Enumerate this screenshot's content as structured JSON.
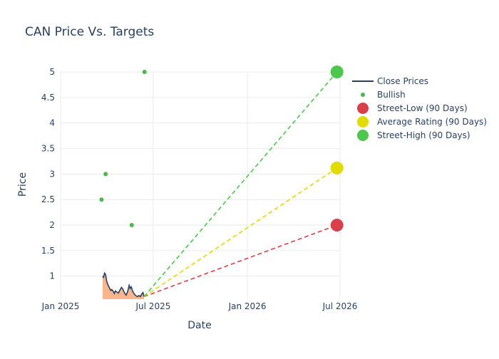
{
  "chart_data": {
    "type": "line",
    "title": "CAN Price Vs. Targets",
    "xlabel": "Date",
    "ylabel": "Price",
    "xlim": [
      "2025-01-01",
      "2026-07-01"
    ],
    "ylim": [
      0.55,
      5.0
    ],
    "x_ticks": [
      {
        "date": "2025-01-01",
        "label": "Jan 2025"
      },
      {
        "date": "2025-07-01",
        "label": "Jul 2025"
      },
      {
        "date": "2026-01-01",
        "label": "Jan 2026"
      },
      {
        "date": "2026-07-01",
        "label": "Jul 2026"
      }
    ],
    "y_ticks": [
      {
        "value": 1,
        "label": "1"
      },
      {
        "value": 1.5,
        "label": "1.5"
      },
      {
        "value": 2,
        "label": "2"
      },
      {
        "value": 2.5,
        "label": "2.5"
      },
      {
        "value": 3,
        "label": "3"
      },
      {
        "value": 3.5,
        "label": "3.5"
      },
      {
        "value": 4,
        "label": "4"
      },
      {
        "value": 4.5,
        "label": "4.5"
      },
      {
        "value": 5,
        "label": "5"
      }
    ],
    "grid": true,
    "legend_position": "top-right",
    "colors": {
      "close": "#2a3f5f",
      "close_fill": "#f8a978",
      "bullish": "#4bb84b",
      "street_low": "#d9414a",
      "average": "#e0dc00",
      "street_high": "#4cc64c"
    },
    "series": [
      {
        "name": "Close Prices",
        "kind": "line",
        "points": [
          {
            "x": "2025-03-24",
            "y": 1.0
          },
          {
            "x": "2025-03-26",
            "y": 0.98
          },
          {
            "x": "2025-03-28",
            "y": 1.06
          },
          {
            "x": "2025-03-30",
            "y": 1.03
          },
          {
            "x": "2025-04-01",
            "y": 0.9
          },
          {
            "x": "2025-04-04",
            "y": 0.82
          },
          {
            "x": "2025-04-07",
            "y": 0.76
          },
          {
            "x": "2025-04-09",
            "y": 0.72
          },
          {
            "x": "2025-04-11",
            "y": 0.74
          },
          {
            "x": "2025-04-14",
            "y": 0.7
          },
          {
            "x": "2025-04-16",
            "y": 0.66
          },
          {
            "x": "2025-04-18",
            "y": 0.71
          },
          {
            "x": "2025-04-21",
            "y": 0.69
          },
          {
            "x": "2025-04-24",
            "y": 0.67
          },
          {
            "x": "2025-04-27",
            "y": 0.73
          },
          {
            "x": "2025-04-30",
            "y": 0.78
          },
          {
            "x": "2025-05-03",
            "y": 0.74
          },
          {
            "x": "2025-05-06",
            "y": 0.67
          },
          {
            "x": "2025-05-09",
            "y": 0.63
          },
          {
            "x": "2025-05-12",
            "y": 0.7
          },
          {
            "x": "2025-05-15",
            "y": 0.82
          },
          {
            "x": "2025-05-17",
            "y": 0.76
          },
          {
            "x": "2025-05-19",
            "y": 0.79
          },
          {
            "x": "2025-05-22",
            "y": 0.7
          },
          {
            "x": "2025-05-25",
            "y": 0.65
          },
          {
            "x": "2025-05-28",
            "y": 0.62
          },
          {
            "x": "2025-05-31",
            "y": 0.6
          },
          {
            "x": "2025-06-03",
            "y": 0.62
          },
          {
            "x": "2025-06-06",
            "y": 0.6
          },
          {
            "x": "2025-06-09",
            "y": 0.66
          },
          {
            "x": "2025-06-11",
            "y": 0.68
          },
          {
            "x": "2025-06-13",
            "y": 0.6
          }
        ]
      },
      {
        "name": "Bullish",
        "kind": "scatter",
        "points": [
          {
            "x": "2025-03-22",
            "y": 2.5
          },
          {
            "x": "2025-03-30",
            "y": 3.0
          },
          {
            "x": "2025-05-20",
            "y": 2.0
          },
          {
            "x": "2025-06-14",
            "y": 5.0
          }
        ]
      },
      {
        "name": "Street-Low (90 Days)",
        "kind": "target",
        "from": {
          "x": "2025-06-13",
          "y": 0.6
        },
        "to": {
          "x": "2026-06-25",
          "y": 2.0
        }
      },
      {
        "name": "Average Rating (90 Days)",
        "kind": "target",
        "from": {
          "x": "2025-06-13",
          "y": 0.6
        },
        "to": {
          "x": "2026-06-25",
          "y": 3.12
        }
      },
      {
        "name": "Street-High (90 Days)",
        "kind": "target",
        "from": {
          "x": "2025-06-13",
          "y": 0.6
        },
        "to": {
          "x": "2026-06-25",
          "y": 5.0
        }
      }
    ]
  }
}
